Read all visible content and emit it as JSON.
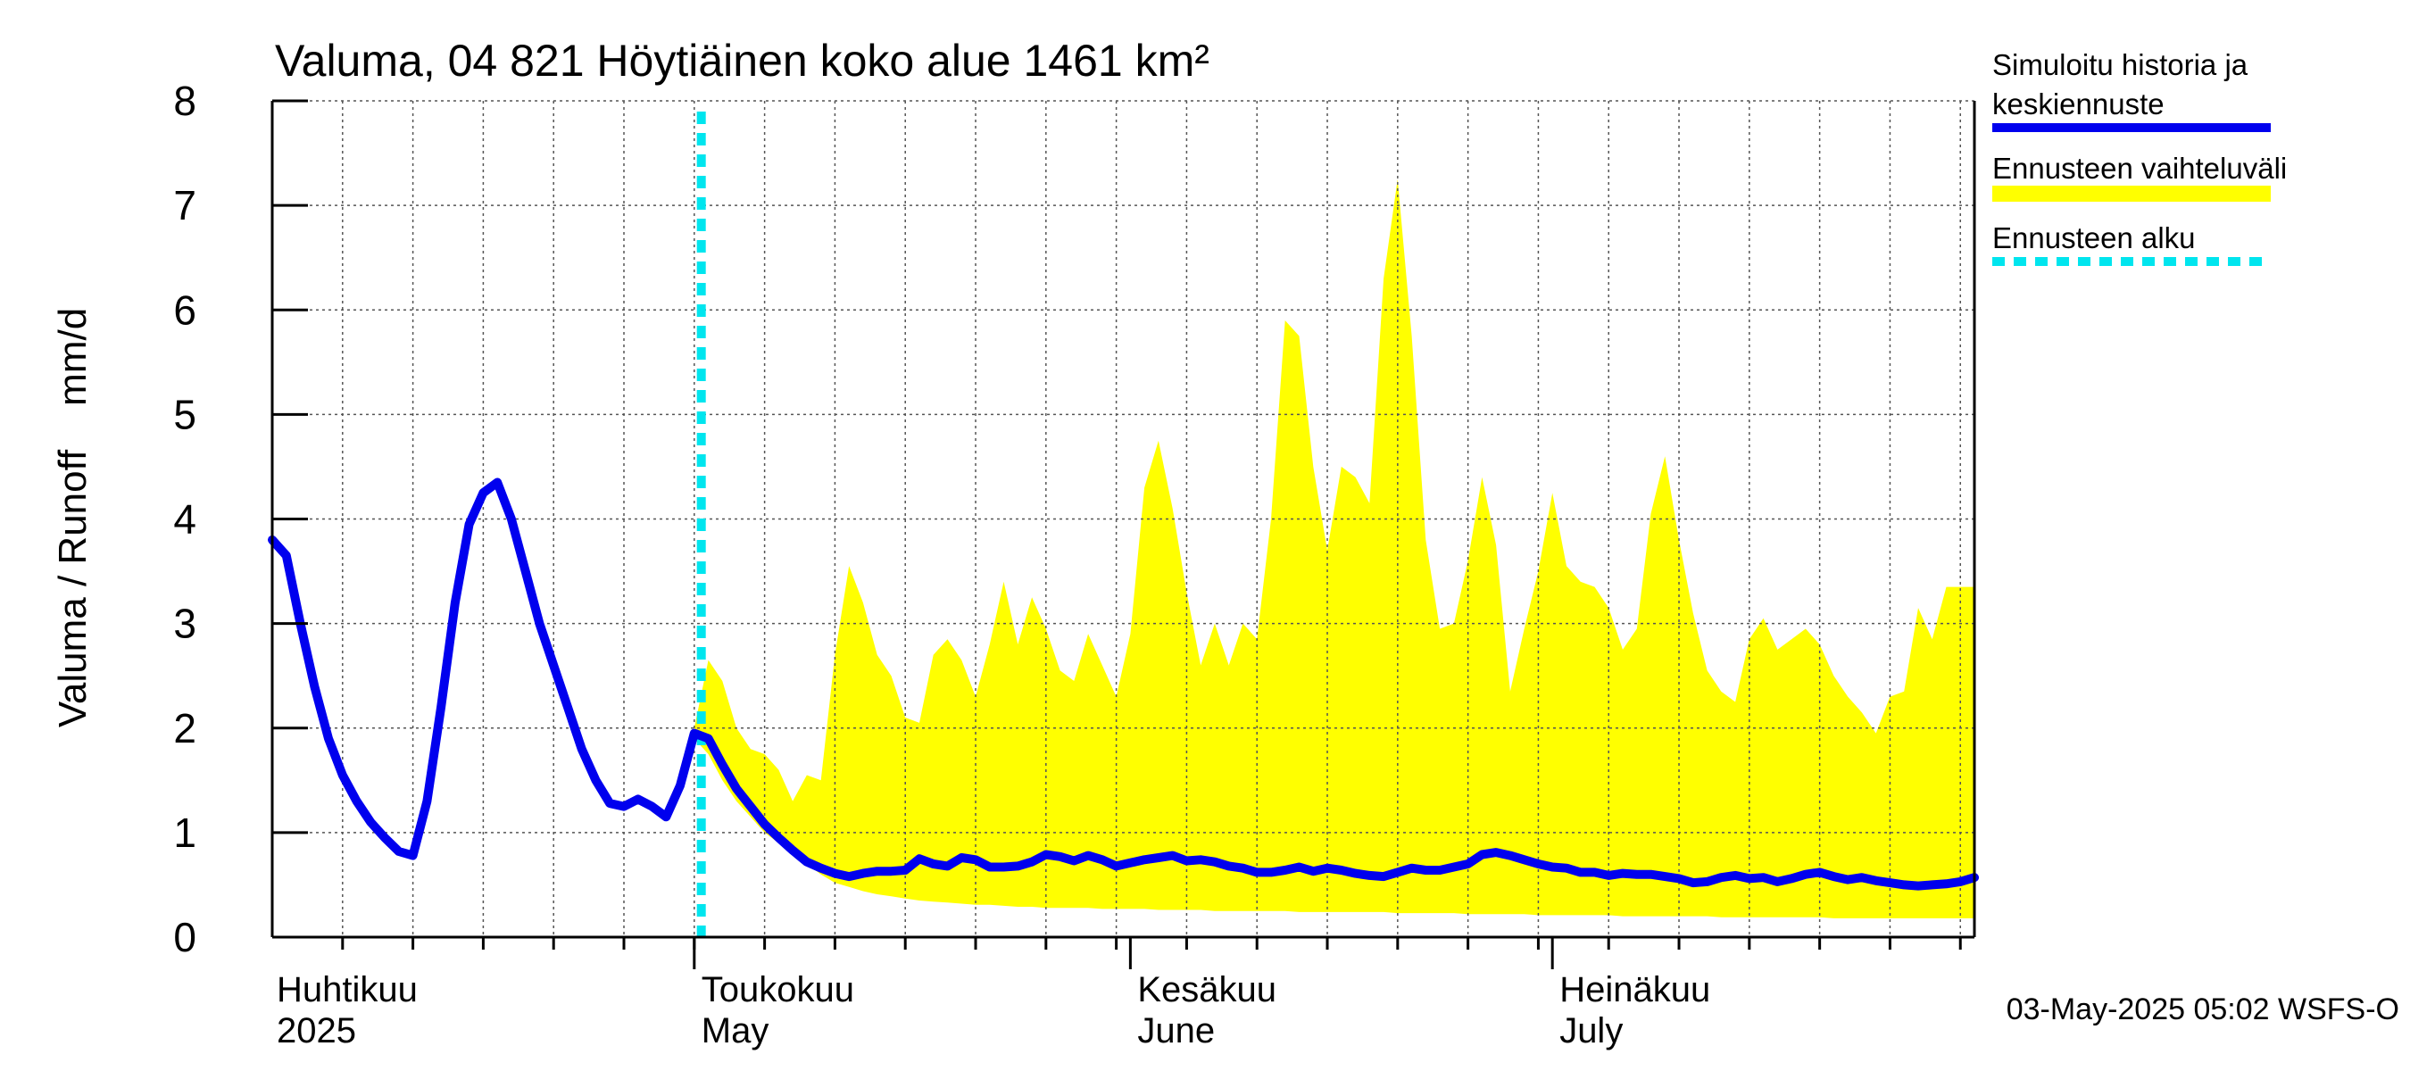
{
  "chart_data": {
    "type": "area",
    "title": "Valuma, 04 821 Höytiäinen koko alue 1461 km²",
    "ylabel": "Valuma / Runoff    mm/d",
    "xlabel": "",
    "ylim": [
      0,
      8
    ],
    "y_ticks": [
      "0",
      "1",
      "2",
      "3",
      "4",
      "5",
      "6",
      "7",
      "8"
    ],
    "x_start_day": 0,
    "x_end_day": 121,
    "month_labels": [
      {
        "day": 0,
        "fi": "Huhtikuu",
        "en": "2025"
      },
      {
        "day": 30,
        "fi": "Toukokuu",
        "en": "May"
      },
      {
        "day": 61,
        "fi": "Kesäkuu",
        "en": "June"
      },
      {
        "day": 91,
        "fi": "Heinäkuu",
        "en": "July"
      }
    ],
    "forecast_start_day": 30.5,
    "legend": {
      "position": "top-right",
      "entries": [
        {
          "line1": "Simuloitu historia ja",
          "line2": "keskiennuste",
          "color": "#0000ee",
          "style": "solid"
        },
        {
          "line1": "Ennusteen vaihteluväli",
          "line2": "",
          "color": "#ffff00",
          "style": "band"
        },
        {
          "line1": "Ennusteen alku",
          "line2": "",
          "color": "#00e5ee",
          "style": "dashed"
        }
      ]
    },
    "series": [
      {
        "name": "Simuloitu historia ja keskiennuste",
        "color": "#0000ee",
        "days": [
          0,
          1,
          2,
          3,
          4,
          5,
          6,
          7,
          8,
          9,
          10,
          11,
          12,
          13,
          14,
          15,
          16,
          17,
          18,
          19,
          20,
          21,
          22,
          23,
          24,
          25,
          26,
          27,
          28,
          29,
          30,
          31,
          32,
          33,
          34,
          35,
          36,
          37,
          38,
          39,
          40,
          41,
          42,
          43,
          44,
          45,
          46,
          47,
          48,
          49,
          50,
          51,
          52,
          53,
          54,
          55,
          56,
          57,
          58,
          59,
          60,
          61,
          62,
          63,
          64,
          65,
          66,
          67,
          68,
          69,
          70,
          71,
          72,
          73,
          74,
          75,
          76,
          77,
          78,
          79,
          80,
          81,
          82,
          83,
          84,
          85,
          86,
          87,
          88,
          89,
          90,
          91,
          92,
          93,
          94,
          95,
          96,
          97,
          98,
          99,
          100,
          101,
          102,
          103,
          104,
          105,
          106,
          107,
          108,
          109,
          110,
          111,
          112,
          113,
          114,
          115,
          116,
          117,
          118,
          119,
          120,
          121
        ],
        "values": [
          3.8,
          3.65,
          3.0,
          2.4,
          1.9,
          1.55,
          1.3,
          1.1,
          0.95,
          0.82,
          0.78,
          1.3,
          2.2,
          3.2,
          3.95,
          4.25,
          4.35,
          4.0,
          3.5,
          3.0,
          2.6,
          2.2,
          1.8,
          1.5,
          1.28,
          1.25,
          1.32,
          1.25,
          1.15,
          1.45,
          1.95,
          1.9,
          1.65,
          1.42,
          1.25,
          1.08,
          0.95,
          0.83,
          0.72,
          0.66,
          0.61,
          0.58,
          0.61,
          0.63,
          0.63,
          0.64,
          0.75,
          0.7,
          0.68,
          0.76,
          0.74,
          0.67,
          0.67,
          0.68,
          0.72,
          0.79,
          0.77,
          0.73,
          0.78,
          0.74,
          0.68,
          0.71,
          0.74,
          0.76,
          0.78,
          0.73,
          0.74,
          0.72,
          0.68,
          0.66,
          0.62,
          0.62,
          0.64,
          0.67,
          0.63,
          0.66,
          0.64,
          0.61,
          0.59,
          0.58,
          0.62,
          0.66,
          0.64,
          0.64,
          0.67,
          0.7,
          0.79,
          0.81,
          0.78,
          0.74,
          0.7,
          0.67,
          0.66,
          0.62,
          0.62,
          0.59,
          0.61,
          0.6,
          0.6,
          0.58,
          0.56,
          0.52,
          0.53,
          0.57,
          0.59,
          0.56,
          0.57,
          0.53,
          0.56,
          0.6,
          0.62,
          0.58,
          0.55,
          0.57,
          0.54,
          0.52,
          0.5,
          0.49,
          0.5,
          0.51,
          0.53,
          0.57
        ]
      },
      {
        "name": "Ennusteen vaihteluväli (upper)",
        "color": "#ffff00",
        "days": [
          30,
          31,
          32,
          33,
          34,
          35,
          36,
          37,
          38,
          39,
          40,
          41,
          42,
          43,
          44,
          45,
          46,
          47,
          48,
          49,
          50,
          51,
          52,
          53,
          54,
          55,
          56,
          57,
          58,
          59,
          60,
          61,
          62,
          63,
          64,
          65,
          66,
          67,
          68,
          69,
          70,
          71,
          72,
          73,
          74,
          75,
          76,
          77,
          78,
          79,
          80,
          81,
          82,
          83,
          84,
          85,
          86,
          87,
          88,
          89,
          90,
          91,
          92,
          93,
          94,
          95,
          96,
          97,
          98,
          99,
          100,
          101,
          102,
          103,
          104,
          105,
          106,
          107,
          108,
          109,
          110,
          111,
          112,
          113,
          114,
          115,
          116,
          117,
          118,
          119,
          120,
          121
        ],
        "values": [
          2.0,
          2.65,
          2.45,
          2.0,
          1.8,
          1.75,
          1.6,
          1.3,
          1.55,
          1.5,
          2.7,
          3.55,
          3.2,
          2.7,
          2.5,
          2.1,
          2.05,
          2.7,
          2.85,
          2.65,
          2.3,
          2.8,
          3.4,
          2.8,
          3.25,
          2.95,
          2.55,
          2.45,
          2.9,
          2.6,
          2.3,
          2.9,
          4.3,
          4.75,
          4.1,
          3.3,
          2.6,
          3.0,
          2.6,
          3.0,
          2.85,
          4.0,
          5.9,
          5.75,
          4.5,
          3.7,
          4.5,
          4.4,
          4.15,
          6.3,
          7.25,
          5.75,
          3.8,
          2.95,
          3.0,
          3.6,
          4.4,
          3.75,
          2.35,
          2.95,
          3.5,
          4.25,
          3.55,
          3.4,
          3.35,
          3.15,
          2.75,
          2.95,
          4.05,
          4.6,
          3.8,
          3.1,
          2.55,
          2.35,
          2.25,
          2.85,
          3.05,
          2.75,
          2.85,
          2.95,
          2.8,
          2.5,
          2.3,
          2.15,
          1.95,
          2.3,
          2.35,
          3.15,
          2.85,
          3.35,
          3.35,
          3.35
        ]
      },
      {
        "name": "Ennusteen vaihteluväli (lower)",
        "color": "#ffff00",
        "days": [
          30,
          31,
          32,
          33,
          34,
          35,
          36,
          37,
          38,
          39,
          40,
          41,
          42,
          43,
          44,
          45,
          46,
          47,
          48,
          49,
          50,
          51,
          52,
          53,
          54,
          55,
          56,
          57,
          58,
          59,
          60,
          61,
          62,
          63,
          64,
          65,
          66,
          67,
          68,
          69,
          70,
          71,
          72,
          73,
          74,
          75,
          76,
          77,
          78,
          79,
          80,
          81,
          82,
          83,
          84,
          85,
          86,
          87,
          88,
          89,
          90,
          91,
          92,
          93,
          94,
          95,
          96,
          97,
          98,
          99,
          100,
          101,
          102,
          103,
          104,
          105,
          106,
          107,
          108,
          109,
          110,
          111,
          112,
          113,
          114,
          115,
          116,
          117,
          118,
          119,
          120,
          121
        ],
        "values": [
          1.9,
          1.75,
          1.5,
          1.3,
          1.15,
          1.0,
          0.9,
          0.8,
          0.7,
          0.6,
          0.52,
          0.48,
          0.44,
          0.41,
          0.39,
          0.37,
          0.35,
          0.34,
          0.33,
          0.32,
          0.31,
          0.31,
          0.3,
          0.29,
          0.29,
          0.28,
          0.28,
          0.28,
          0.28,
          0.27,
          0.27,
          0.27,
          0.27,
          0.26,
          0.26,
          0.26,
          0.26,
          0.25,
          0.25,
          0.25,
          0.25,
          0.25,
          0.25,
          0.24,
          0.24,
          0.24,
          0.24,
          0.24,
          0.24,
          0.24,
          0.23,
          0.23,
          0.23,
          0.23,
          0.23,
          0.22,
          0.22,
          0.22,
          0.22,
          0.22,
          0.21,
          0.21,
          0.21,
          0.21,
          0.21,
          0.21,
          0.2,
          0.2,
          0.2,
          0.2,
          0.2,
          0.2,
          0.2,
          0.19,
          0.19,
          0.19,
          0.19,
          0.19,
          0.19,
          0.19,
          0.19,
          0.18,
          0.18,
          0.18,
          0.18,
          0.18,
          0.18,
          0.18,
          0.18,
          0.18,
          0.18,
          0.18
        ]
      }
    ]
  },
  "footer": {
    "timestamp": "03-May-2025 05:02 WSFS-O"
  }
}
